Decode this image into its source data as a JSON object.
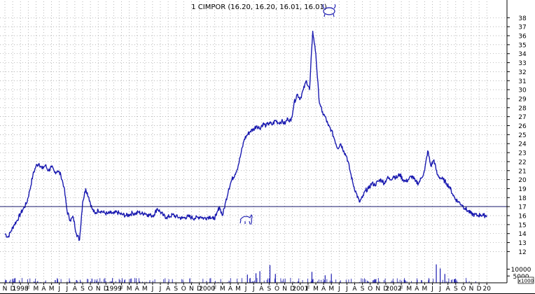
{
  "chart_data": {
    "type": "line",
    "title": "1 CIMPOR (16.20, 16.20, 16.01, 16.01)",
    "xlabel": "",
    "ylabel": "",
    "ylim": [
      11,
      38
    ],
    "y_ticks": [
      12,
      13,
      14,
      15,
      16,
      17,
      18,
      19,
      20,
      21,
      22,
      23,
      24,
      25,
      26,
      27,
      28,
      29,
      30,
      31,
      32,
      33,
      34,
      35,
      36,
      37,
      38
    ],
    "x_ticks": [
      "N",
      "D",
      "1998",
      "F",
      "M",
      "A",
      "M",
      "J",
      "J",
      "A",
      "S",
      "O",
      "N",
      "D",
      "1999",
      "F",
      "M",
      "A",
      "M",
      "J",
      "J",
      "A",
      "S",
      "O",
      "N",
      "D",
      "2000",
      "F",
      "M",
      "A",
      "M",
      "J",
      "J",
      "A",
      "S",
      "O",
      "N",
      "D",
      "2001",
      "F",
      "M",
      "A",
      "M",
      "J",
      "J",
      "A",
      "S",
      "O",
      "N",
      "D",
      "2002",
      "F",
      "M",
      "A",
      "M",
      "J",
      "J",
      "A",
      "S",
      "O",
      "N",
      "D",
      "20"
    ],
    "x_start": "1997-11",
    "series": [
      {
        "values": [
          14.0,
          13.6,
          14.3,
          15.0,
          15.5,
          16.2,
          16.8,
          17.4,
          18.8,
          20.5,
          21.5,
          21.8,
          21.2,
          21.6,
          21.0,
          21.4,
          20.8,
          21.0,
          20.5,
          19.2,
          16.5,
          15.5,
          15.8,
          14.0,
          13.3,
          17.5,
          19.0,
          18.0,
          16.8,
          16.2,
          16.6,
          16.5,
          16.3,
          16.2,
          16.3,
          16.2,
          16.4,
          16.2,
          16.1,
          16.0,
          16.1,
          16.3,
          16.2,
          16.4,
          16.2,
          16.3,
          16.1,
          16.0,
          16.1,
          16.8,
          16.4,
          16.0,
          15.8,
          15.9,
          16.1,
          15.9,
          15.8,
          15.7,
          15.8,
          15.9,
          15.8,
          15.7,
          15.8,
          15.9,
          15.7,
          15.8,
          15.9,
          15.6,
          16.0,
          17.0,
          16.0,
          17.5,
          19.0,
          20.0,
          20.6,
          21.5,
          23.0,
          24.5,
          25.0,
          25.4,
          25.6,
          26.0,
          25.7,
          26.2,
          26.0,
          26.3,
          26.1,
          26.6,
          26.3,
          26.5,
          26.2,
          26.8,
          26.5,
          28.5,
          29.5,
          29.0,
          30.0,
          31.0,
          30.0,
          36.5,
          34.0,
          29.0,
          27.5,
          27.0,
          26.0,
          25.5,
          24.5,
          23.5,
          24.0,
          23.2,
          22.5,
          21.0,
          19.5,
          18.5,
          17.5,
          18.0,
          18.8,
          19.0,
          19.6,
          19.4,
          19.8,
          20.0,
          19.6,
          20.2,
          20.0,
          20.4,
          20.2,
          20.6,
          20.0,
          19.8,
          20.1,
          20.4,
          19.8,
          19.6,
          20.2,
          21.0,
          23.2,
          21.5,
          22.2,
          20.6,
          20.2,
          20.0,
          19.6,
          19.2,
          18.4,
          17.8,
          17.5,
          17.2,
          16.8,
          16.5,
          16.2,
          16.1,
          16.0,
          16.1,
          16.0,
          16.01
        ]
      }
    ],
    "reference_line": 17.0,
    "volume_axis": {
      "ticks": [
        "10000",
        "5000"
      ],
      "unit_label": "x1000"
    },
    "volume_spikes": [
      {
        "month": 31.2,
        "value": 6000
      },
      {
        "month": 32.3,
        "value": 7000
      },
      {
        "month": 32.8,
        "value": 8500
      },
      {
        "month": 34.1,
        "value": 13000
      },
      {
        "month": 34.8,
        "value": 6500
      },
      {
        "month": 39.5,
        "value": 8000
      },
      {
        "month": 41.2,
        "value": 5500
      },
      {
        "month": 42.0,
        "value": 6500
      },
      {
        "month": 55.5,
        "value": 13500
      },
      {
        "month": 56.0,
        "value": 10500
      },
      {
        "month": 56.6,
        "value": 6500
      }
    ]
  }
}
